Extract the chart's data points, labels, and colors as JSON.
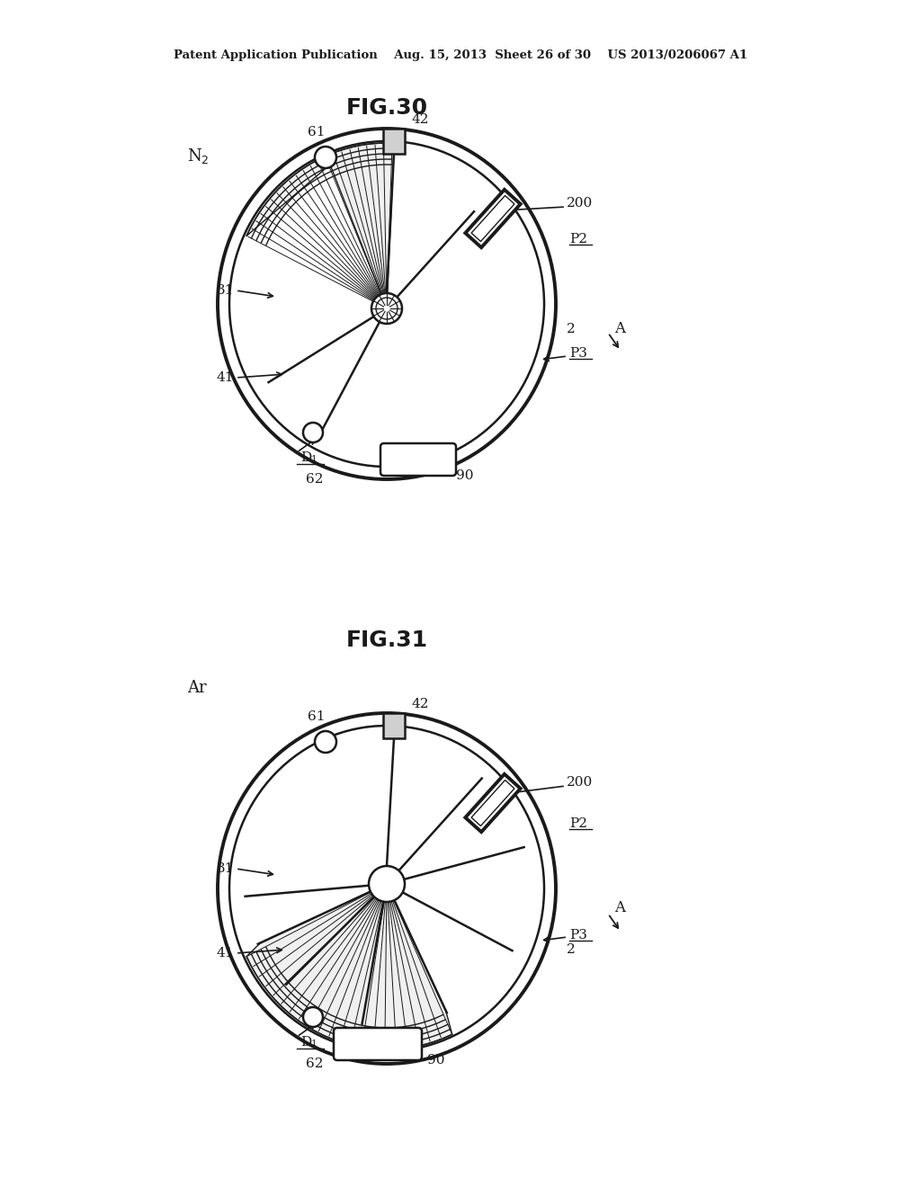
{
  "bg_color": "#ffffff",
  "header_text": "Patent Application Publication    Aug. 15, 2013  Sheet 26 of 30    US 2013/0206067 A1",
  "fig30_title": "FIG.30",
  "fig31_title": "FIG.31",
  "fig30_gas": "N₂",
  "fig31_gas": "Ar",
  "line_color": "#1a1a1a",
  "label_color": "#1a1a1a"
}
